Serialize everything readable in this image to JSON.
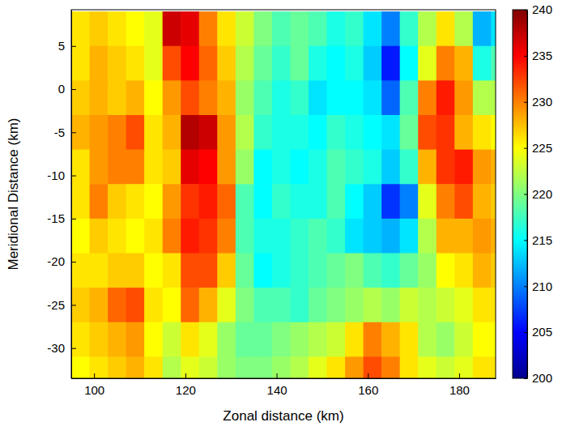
{
  "chart_data": {
    "type": "heatmap",
    "xlabel": "Zonal distance (km)",
    "ylabel": "Meridional Distance (km)",
    "x": [
      97,
      101,
      105,
      109,
      113,
      117,
      121,
      125,
      129,
      133,
      137,
      141,
      145,
      149,
      153,
      157,
      161,
      165,
      169,
      173,
      177,
      181,
      185,
      189
    ],
    "y": [
      7,
      3,
      -1,
      -5,
      -9,
      -13,
      -17,
      -21,
      -25,
      -29,
      -33
    ],
    "z": [
      [
        226,
        227,
        226,
        225,
        224,
        237,
        236,
        230,
        226,
        223,
        220,
        218,
        219,
        218,
        216,
        217,
        214,
        210,
        217,
        222,
        226,
        222,
        212,
        214
      ],
      [
        226,
        228,
        227,
        226,
        224,
        232,
        235,
        231,
        227,
        222,
        219,
        217,
        219,
        216,
        215,
        216,
        213,
        206,
        215,
        224,
        230,
        228,
        216,
        218
      ],
      [
        227,
        228,
        227,
        228,
        225,
        229,
        232,
        230,
        228,
        221,
        218,
        216,
        217,
        214,
        215,
        215,
        214,
        209,
        218,
        230,
        234,
        229,
        222,
        222
      ],
      [
        228,
        229,
        230,
        232,
        226,
        228,
        238,
        237,
        229,
        222,
        217,
        216,
        216,
        215,
        217,
        216,
        215,
        214,
        219,
        232,
        233,
        228,
        226,
        225
      ],
      [
        226,
        229,
        230,
        230,
        226,
        227,
        236,
        235,
        229,
        221,
        215,
        216,
        215,
        216,
        218,
        217,
        216,
        213,
        217,
        228,
        233,
        234,
        229,
        228
      ],
      [
        226,
        230,
        227,
        226,
        225,
        229,
        233,
        234,
        231,
        218,
        215,
        217,
        216,
        216,
        218,
        215,
        213,
        207,
        210,
        224,
        230,
        232,
        228,
        227
      ],
      [
        225,
        227,
        226,
        225,
        226,
        230,
        234,
        233,
        230,
        218,
        216,
        216,
        217,
        218,
        217,
        214,
        213,
        212,
        214,
        222,
        228,
        228,
        229,
        228
      ],
      [
        226,
        226,
        227,
        227,
        225,
        226,
        232,
        232,
        227,
        219,
        215,
        216,
        217,
        218,
        219,
        220,
        218,
        217,
        219,
        221,
        225,
        226,
        228,
        227
      ],
      [
        227,
        228,
        231,
        232,
        226,
        225,
        231,
        228,
        224,
        220,
        218,
        218,
        217,
        219,
        220,
        221,
        222,
        221,
        223,
        222,
        223,
        224,
        226,
        226
      ],
      [
        226,
        227,
        228,
        229,
        225,
        223,
        226,
        224,
        221,
        219,
        219,
        220,
        221,
        222,
        223,
        226,
        230,
        228,
        226,
        222,
        221,
        223,
        225,
        225
      ],
      [
        225,
        226,
        227,
        228,
        226,
        222,
        224,
        223,
        221,
        220,
        220,
        221,
        222,
        224,
        226,
        229,
        232,
        230,
        226,
        224,
        223,
        224,
        226,
        226
      ]
    ],
    "xlim": [
      95,
      188
    ],
    "ylim": [
      -33.5,
      9.2
    ],
    "xticks": [
      100,
      120,
      140,
      160,
      180
    ],
    "yticks": [
      -30,
      -25,
      -20,
      -15,
      -10,
      -5,
      0,
      5
    ],
    "colorbar_range": [
      200,
      240
    ],
    "colorbar_ticks": [
      200,
      205,
      210,
      215,
      220,
      225,
      230,
      235,
      240
    ]
  }
}
